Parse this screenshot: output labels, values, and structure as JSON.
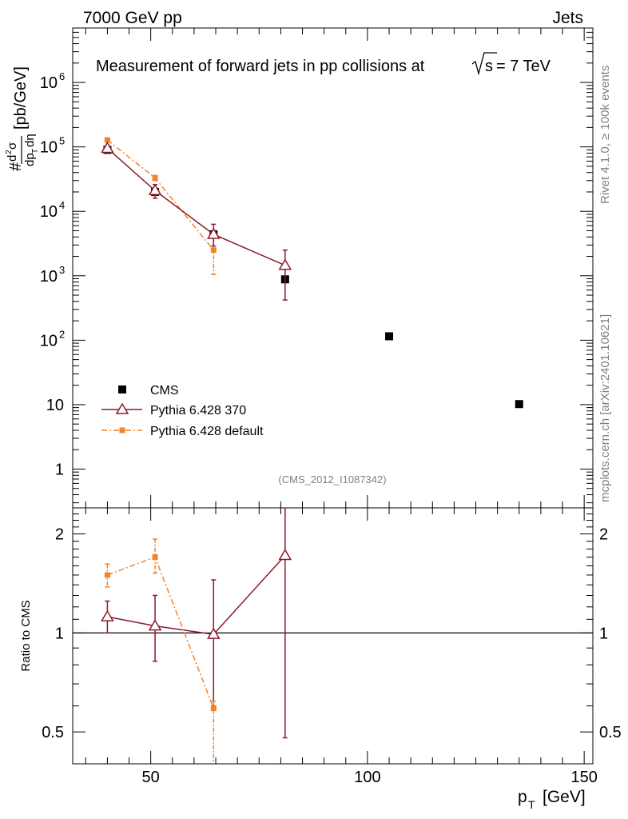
{
  "header": {
    "left": "7000 GeV pp",
    "right": "Jets"
  },
  "side_labels": {
    "rivet": "Rivet 4.1.0, ≥ 100k events",
    "mcplots": "mcplots.cern.ch [arXiv:2401.10621]"
  },
  "colors": {
    "cms": "#000000",
    "pythia370": "#8b1a2b",
    "pythia_default": "#f5822a"
  },
  "chart_data": [
    {
      "type": "scatter",
      "title": "Measurement of forward jets in pp collisions at",
      "title_sqrt": "s",
      "title_suffix": "= 7 TeV",
      "watermark": "(CMS_2012_I1087342)",
      "ylabel": "# d²σ / dp_T dη [pb/GeV]",
      "yscale": "log",
      "ylim": [
        0.25,
        7000000
      ],
      "xlim": [
        32,
        152
      ],
      "yticks": [
        {
          "value": 1,
          "label": "1"
        },
        {
          "value": 10,
          "label": "10"
        },
        {
          "value": 100,
          "label": "10",
          "exp": "2"
        },
        {
          "value": 1000,
          "label": "10",
          "exp": "3"
        },
        {
          "value": 10000,
          "label": "10",
          "exp": "4"
        },
        {
          "value": 100000,
          "label": "10",
          "exp": "5"
        },
        {
          "value": 1000000,
          "label": "10",
          "exp": "6"
        }
      ],
      "legend": {
        "position": "bottom-left",
        "entries": [
          "CMS",
          "Pythia 6.428 370",
          "Pythia 6.428 default"
        ]
      },
      "series": [
        {
          "name": "CMS",
          "style": "square",
          "x": [
            40,
            51,
            64.5,
            81,
            105,
            135
          ],
          "y": [
            90000,
            20000,
            4400,
            880,
            115,
            10.2
          ],
          "ylo": [
            80000,
            18000,
            4000,
            800,
            105,
            9.5
          ],
          "yhi": [
            100000,
            22000,
            4800,
            960,
            125,
            11
          ]
        },
        {
          "name": "Pythia 6.428 370",
          "style": "triangle",
          "x": [
            40,
            51,
            64.5,
            81
          ],
          "y": [
            95000,
            21000,
            4400,
            1450
          ],
          "ylo": [
            85000,
            16000,
            2900,
            420
          ],
          "yhi": [
            105000,
            26000,
            6300,
            2500
          ]
        },
        {
          "name": "Pythia 6.428 default",
          "style": "dashdot-square",
          "x": [
            40,
            51,
            64.5
          ],
          "y": [
            128000,
            33000,
            2500
          ],
          "ylo": [
            118000,
            30000,
            1050
          ],
          "yhi": [
            138000,
            36000,
            3900
          ]
        }
      ]
    },
    {
      "type": "scatter",
      "ylabel": "Ratio to CMS",
      "xlabel": "p",
      "xlabel_sub": "T",
      "xlabel_unit": "[GeV]",
      "yscale": "log",
      "ylim": [
        0.4,
        2.4
      ],
      "xlim": [
        32,
        152
      ],
      "yticks": [
        {
          "value": 0.5,
          "label": "0.5"
        },
        {
          "value": 1,
          "label": "1"
        },
        {
          "value": 2,
          "label": "2"
        }
      ],
      "xticks": [
        {
          "value": 50,
          "label": "50"
        },
        {
          "value": 100,
          "label": "100"
        },
        {
          "value": 150,
          "label": "150"
        }
      ],
      "reference_line": 1,
      "series": [
        {
          "name": "Pythia 6.428 370",
          "style": "triangle",
          "x": [
            40,
            51,
            64.5,
            81
          ],
          "y": [
            1.12,
            1.05,
            0.99,
            1.72
          ],
          "ylo": [
            1.0,
            0.82,
            0.6,
            0.48
          ],
          "yhi": [
            1.25,
            1.3,
            1.45,
            2.6
          ]
        },
        {
          "name": "Pythia 6.428 default",
          "style": "dashdot-square",
          "x": [
            40,
            51,
            64.5
          ],
          "y": [
            1.5,
            1.7,
            0.59
          ],
          "ylo": [
            1.38,
            1.52,
            0.25
          ],
          "yhi": [
            1.62,
            1.93,
            0.62
          ]
        }
      ]
    }
  ]
}
